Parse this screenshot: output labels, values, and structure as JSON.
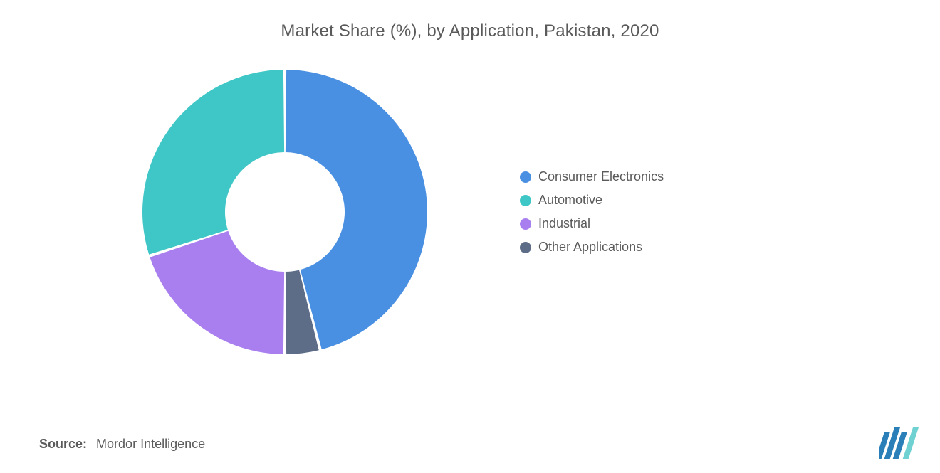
{
  "chart": {
    "type": "donut",
    "title": "Market Share (%), by Application, Pakistan, 2020",
    "title_fontsize": 24,
    "title_color": "#5a5a5a",
    "background_color": "#ffffff",
    "inner_radius_ratio": 0.42,
    "outer_radius": 200,
    "start_angle_deg": -90,
    "gap_deg": 1.2,
    "slices": [
      {
        "label": "Consumer Electronics",
        "value": 46,
        "color": "#4a90e2"
      },
      {
        "label": "Other Applications",
        "value": 4,
        "color": "#5d6d87"
      },
      {
        "label": "Industrial",
        "value": 20,
        "color": "#a97ff0"
      },
      {
        "label": "Automotive",
        "value": 30,
        "color": "#3fc6c6"
      }
    ],
    "legend_order": [
      0,
      3,
      2,
      1
    ],
    "legend_fontsize": 18,
    "legend_text_color": "#5a5a5a"
  },
  "source": {
    "label": "Source:",
    "value": "Mordor Intelligence",
    "fontsize": 18,
    "color": "#5a5a5a"
  },
  "logo": {
    "name": "mordor-intelligence-logo",
    "bar_color": "#2a7fb8",
    "accent_color": "#6fd1d1"
  }
}
